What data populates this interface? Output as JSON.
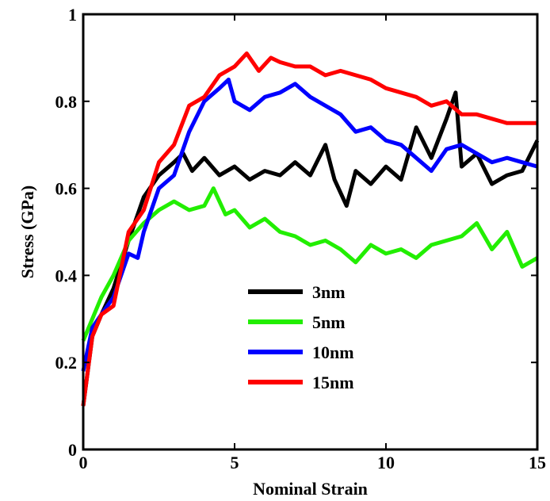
{
  "chart_data": {
    "type": "line",
    "xlabel": "Nominal Strain",
    "ylabel": "Stress (GPa)",
    "xlim": [
      0,
      15
    ],
    "ylim": [
      0,
      1
    ],
    "xticks": [
      0,
      5,
      10,
      15
    ],
    "xtick_labels": [
      "0",
      "5",
      "10",
      "15"
    ],
    "yticks": [
      0,
      0.2,
      0.4,
      0.6,
      0.8,
      1
    ],
    "ytick_labels": [
      "0",
      "0.2",
      "0.4",
      "0.6",
      "0.8",
      "1"
    ],
    "grid": false,
    "legend_position": "center",
    "series": [
      {
        "name": "3nm",
        "color": "#000000",
        "x": [
          0,
          0.3,
          0.6,
          1.0,
          1.5,
          2.0,
          2.5,
          3.0,
          3.3,
          3.6,
          4.0,
          4.5,
          5.0,
          5.5,
          6.0,
          6.5,
          7.0,
          7.5,
          8.0,
          8.3,
          8.7,
          9.0,
          9.5,
          10.0,
          10.5,
          11.0,
          11.5,
          12.0,
          12.3,
          12.5,
          13.0,
          13.5,
          14.0,
          14.5,
          15.0
        ],
        "y": [
          0.1,
          0.26,
          0.31,
          0.37,
          0.48,
          0.58,
          0.63,
          0.66,
          0.68,
          0.64,
          0.67,
          0.63,
          0.65,
          0.62,
          0.64,
          0.63,
          0.66,
          0.63,
          0.7,
          0.62,
          0.56,
          0.64,
          0.61,
          0.65,
          0.62,
          0.74,
          0.67,
          0.76,
          0.82,
          0.65,
          0.68,
          0.61,
          0.63,
          0.64,
          0.71
        ]
      },
      {
        "name": "5nm",
        "color": "#22ee00",
        "x": [
          0,
          0.3,
          0.6,
          1.0,
          1.5,
          2.0,
          2.5,
          3.0,
          3.5,
          4.0,
          4.3,
          4.7,
          5.0,
          5.5,
          6.0,
          6.5,
          7.0,
          7.5,
          8.0,
          8.5,
          9.0,
          9.5,
          10.0,
          10.5,
          11.0,
          11.5,
          12.0,
          12.5,
          13.0,
          13.5,
          14.0,
          14.5,
          15.0
        ],
        "y": [
          0.25,
          0.3,
          0.35,
          0.4,
          0.48,
          0.52,
          0.55,
          0.57,
          0.55,
          0.56,
          0.6,
          0.54,
          0.55,
          0.51,
          0.53,
          0.5,
          0.49,
          0.47,
          0.48,
          0.46,
          0.43,
          0.47,
          0.45,
          0.46,
          0.44,
          0.47,
          0.48,
          0.49,
          0.52,
          0.46,
          0.5,
          0.42,
          0.44
        ]
      },
      {
        "name": "10nm",
        "color": "#0000ff",
        "x": [
          0,
          0.3,
          0.6,
          1.0,
          1.5,
          1.8,
          2.0,
          2.5,
          3.0,
          3.5,
          4.0,
          4.5,
          4.8,
          5.0,
          5.5,
          6.0,
          6.5,
          7.0,
          7.5,
          8.0,
          8.5,
          9.0,
          9.5,
          10.0,
          10.5,
          11.0,
          11.5,
          12.0,
          12.5,
          13.0,
          13.5,
          14.0,
          14.5,
          15.0
        ],
        "y": [
          0.18,
          0.28,
          0.31,
          0.35,
          0.45,
          0.44,
          0.5,
          0.6,
          0.63,
          0.73,
          0.8,
          0.83,
          0.85,
          0.8,
          0.78,
          0.81,
          0.82,
          0.84,
          0.81,
          0.79,
          0.77,
          0.73,
          0.74,
          0.71,
          0.7,
          0.67,
          0.64,
          0.69,
          0.7,
          0.68,
          0.66,
          0.67,
          0.66,
          0.65
        ]
      },
      {
        "name": "15nm",
        "color": "#ff0000",
        "x": [
          0,
          0.3,
          0.6,
          1.0,
          1.5,
          2.0,
          2.5,
          3.0,
          3.5,
          4.0,
          4.5,
          5.0,
          5.4,
          5.8,
          6.2,
          6.5,
          7.0,
          7.5,
          8.0,
          8.5,
          9.0,
          9.5,
          10.0,
          10.5,
          11.0,
          11.5,
          12.0,
          12.5,
          13.0,
          13.5,
          14.0,
          14.5,
          15.0
        ],
        "y": [
          0.1,
          0.26,
          0.31,
          0.33,
          0.5,
          0.55,
          0.66,
          0.7,
          0.79,
          0.81,
          0.86,
          0.88,
          0.91,
          0.87,
          0.9,
          0.89,
          0.88,
          0.88,
          0.86,
          0.87,
          0.86,
          0.85,
          0.83,
          0.82,
          0.81,
          0.79,
          0.8,
          0.77,
          0.77,
          0.76,
          0.75,
          0.75,
          0.75
        ]
      }
    ]
  }
}
